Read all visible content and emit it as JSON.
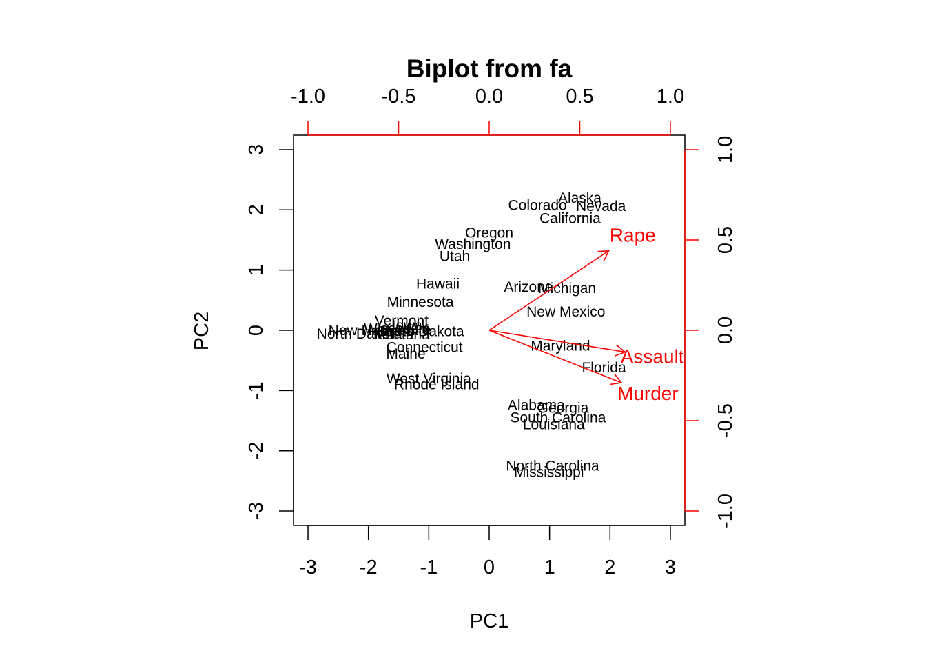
{
  "chart_data": {
    "type": "scatter",
    "title": "Biplot from fa",
    "xlabel": "PC1",
    "ylabel": "PC2",
    "xlim": [
      -3.24,
      3.24
    ],
    "ylim": [
      -3.24,
      3.24
    ],
    "x_ticks": [
      "-3",
      "-2",
      "-1",
      "0",
      "1",
      "2",
      "3"
    ],
    "y_ticks": [
      "-3",
      "-2",
      "-1",
      "0",
      "1",
      "2",
      "3"
    ],
    "loading_axis_range": [
      -1.08,
      1.08
    ],
    "top_ticks": [
      "-1.0",
      "-0.5",
      "0.0",
      "0.5",
      "1.0"
    ],
    "right_ticks": [
      "-1.0",
      "-0.5",
      "0.0",
      "0.5",
      "1.0"
    ],
    "grid": false,
    "colors": {
      "points": "#000000",
      "loadings": "#ff0000"
    },
    "points": [
      {
        "label": "Alaska",
        "x": 1.5,
        "y": 2.2
      },
      {
        "label": "Colorado",
        "x": 0.8,
        "y": 2.08
      },
      {
        "label": "Nevada",
        "x": 1.85,
        "y": 2.06
      },
      {
        "label": "California",
        "x": 1.34,
        "y": 1.86
      },
      {
        "label": "Oregon",
        "x": 0.0,
        "y": 1.62
      },
      {
        "label": "Washington",
        "x": -0.27,
        "y": 1.43
      },
      {
        "label": "Utah",
        "x": -0.57,
        "y": 1.23
      },
      {
        "label": "Hawaii",
        "x": -0.85,
        "y": 0.77
      },
      {
        "label": "Arizona",
        "x": 0.65,
        "y": 0.72
      },
      {
        "label": "Michigan",
        "x": 1.29,
        "y": 0.7
      },
      {
        "label": "Minnesota",
        "x": -1.14,
        "y": 0.47
      },
      {
        "label": "New Mexico",
        "x": 1.27,
        "y": 0.31
      },
      {
        "label": "Vermont",
        "x": -1.45,
        "y": 0.16
      },
      {
        "label": "Iowa",
        "x": -1.36,
        "y": 0.08
      },
      {
        "label": "Wisconsin",
        "x": -1.53,
        "y": 0.03
      },
      {
        "label": "New Hampshire",
        "x": -1.81,
        "y": 0.0
      },
      {
        "label": "Idaho",
        "x": -1.55,
        "y": -0.01
      },
      {
        "label": "South Dakota",
        "x": -1.14,
        "y": -0.02
      },
      {
        "label": "North Dakota",
        "x": -2.15,
        "y": -0.06
      },
      {
        "label": "Montana",
        "x": -1.45,
        "y": -0.07
      },
      {
        "label": "Connecticut",
        "x": -1.07,
        "y": -0.28
      },
      {
        "label": "Maryland",
        "x": 1.18,
        "y": -0.26
      },
      {
        "label": "Maine",
        "x": -1.38,
        "y": -0.39
      },
      {
        "label": "Florida",
        "x": 1.9,
        "y": -0.62
      },
      {
        "label": "West Virginia",
        "x": -1.0,
        "y": -0.8
      },
      {
        "label": "Rhode Island",
        "x": -0.87,
        "y": -0.9
      },
      {
        "label": "Alabama",
        "x": 0.78,
        "y": -1.24
      },
      {
        "label": "Georgia",
        "x": 1.22,
        "y": -1.29
      },
      {
        "label": "South Carolina",
        "x": 1.14,
        "y": -1.45
      },
      {
        "label": "Louisiana",
        "x": 1.07,
        "y": -1.56
      },
      {
        "label": "North Carolina",
        "x": 1.05,
        "y": -2.25
      },
      {
        "label": "Mississippi",
        "x": 0.99,
        "y": -2.35
      }
    ],
    "loadings": [
      {
        "label": "Rape",
        "x": 0.66,
        "y": 0.44
      },
      {
        "label": "Assault",
        "x": 0.75,
        "y": -0.12
      },
      {
        "label": "Murder",
        "x": 0.73,
        "y": -0.29
      }
    ]
  }
}
